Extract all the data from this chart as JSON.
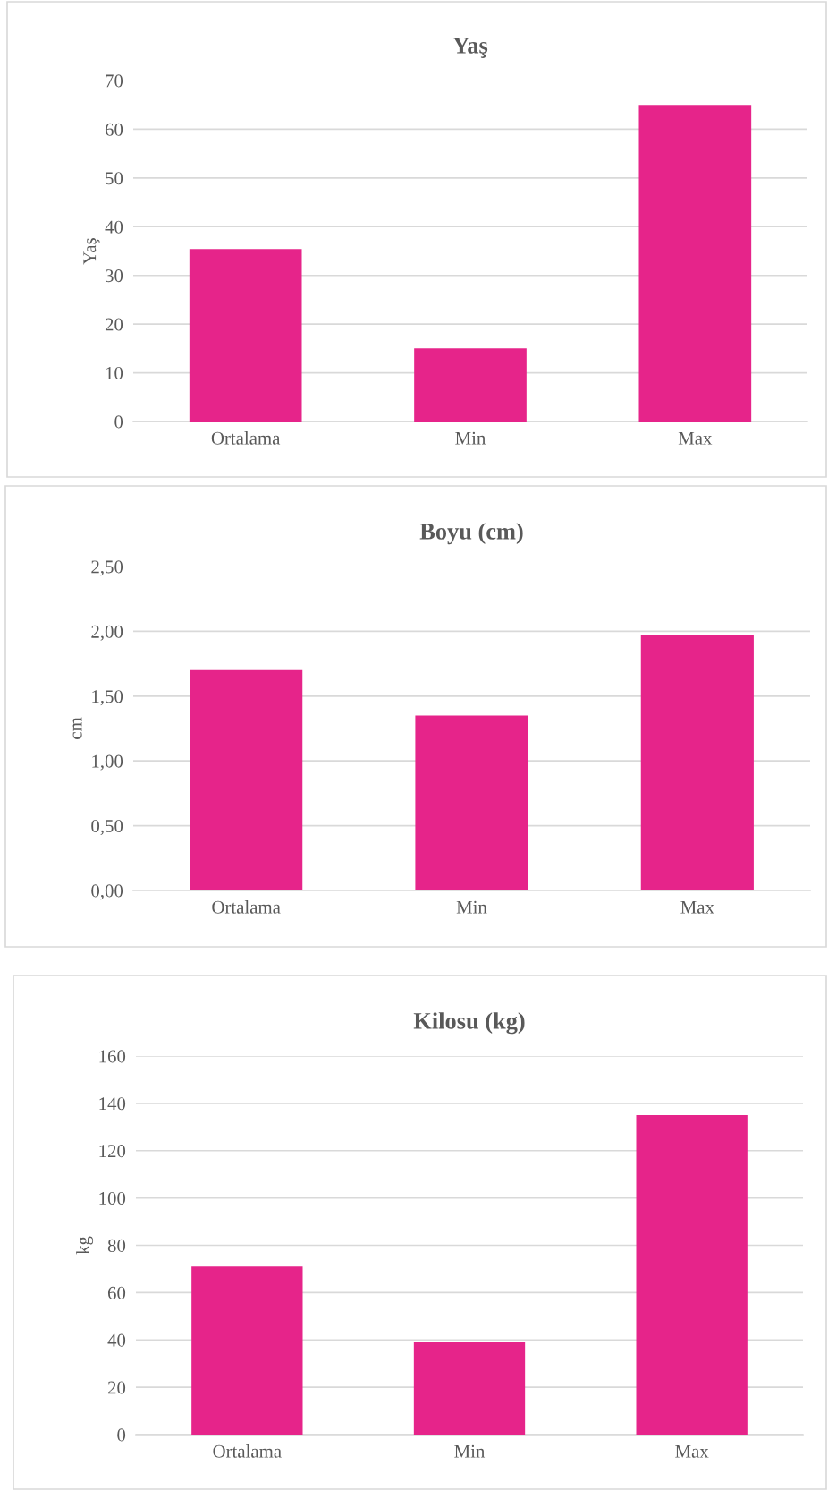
{
  "chart_data": [
    {
      "type": "bar",
      "title": "Yaş",
      "ylabel": "Yaş",
      "categories": [
        "Ortalama",
        "Min",
        "Max"
      ],
      "values": [
        35.4,
        15,
        65
      ],
      "color": "#e6248a",
      "ylim": [
        0,
        70
      ],
      "yticks": [
        0,
        10,
        20,
        30,
        40,
        50,
        60,
        70
      ],
      "grid": "y"
    },
    {
      "type": "bar",
      "title": "Boyu (cm)",
      "ylabel": "cm",
      "categories": [
        "Ortalama",
        "Min",
        "Max"
      ],
      "values": [
        1.7,
        1.35,
        1.97
      ],
      "color": "#e6248a",
      "ylim": [
        0,
        2.5
      ],
      "yticks": [
        {
          "value": 0,
          "label": "0,00"
        },
        {
          "value": 0.5,
          "label": "0,50"
        },
        {
          "value": 1,
          "label": "1,00"
        },
        {
          "value": 1.5,
          "label": "1,50"
        },
        {
          "value": 2,
          "label": "2,00"
        },
        {
          "value": 2.5,
          "label": "2,50"
        }
      ],
      "grid": "y"
    },
    {
      "type": "bar",
      "title": "Kilosu (kg)",
      "ylabel": "kg",
      "categories": [
        "Ortalama",
        "Min",
        "Max"
      ],
      "values": [
        71,
        39,
        135
      ],
      "color": "#e6248a",
      "ylim": [
        0,
        160
      ],
      "yticks": [
        0,
        20,
        40,
        60,
        80,
        100,
        120,
        140,
        160
      ],
      "grid": "y"
    }
  ]
}
